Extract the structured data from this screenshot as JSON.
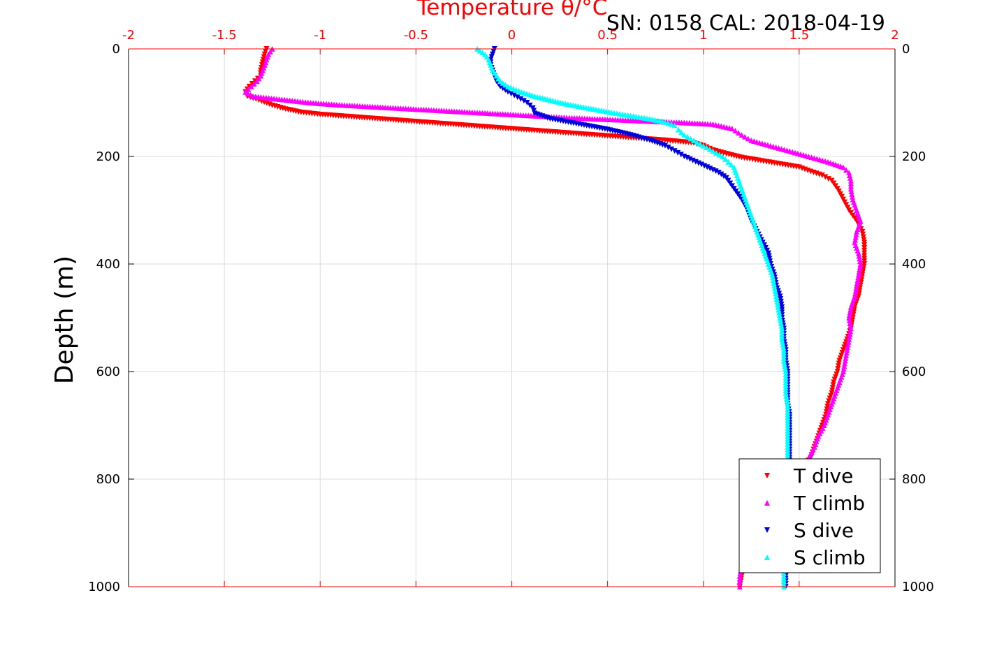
{
  "chart_data": {
    "type": "scatter",
    "title": "Temperature θ/°C",
    "annotation": "SN: 0158  CAL: 2018-04-19",
    "xlabel": "Temperature θ/°C",
    "ylabel": "Depth (m)",
    "xlim": [
      -2,
      2
    ],
    "ylim": [
      0,
      1000
    ],
    "y_inverted": true,
    "grid": true,
    "legend_position": "bottom-right",
    "xticks": [
      "-2",
      "-1.5",
      "-1",
      "-0.5",
      "0",
      "0.5",
      "1",
      "1.5",
      "2"
    ],
    "yticks": [
      "0",
      "200",
      "400",
      "600",
      "800",
      "1000"
    ],
    "colors": {
      "axes_x": "#ff0000",
      "axes_y": "#000000",
      "grid": "#dcdcdc"
    },
    "series": [
      {
        "name": "T dive",
        "color": "#ff0000",
        "marker": "triangle-down",
        "points": [
          [
            -1.28,
            0
          ],
          [
            -1.29,
            10
          ],
          [
            -1.3,
            25
          ],
          [
            -1.31,
            40
          ],
          [
            -1.31,
            50
          ],
          [
            -1.34,
            60
          ],
          [
            -1.37,
            70
          ],
          [
            -1.39,
            80
          ],
          [
            -1.38,
            88
          ],
          [
            -1.32,
            95
          ],
          [
            -1.25,
            105
          ],
          [
            -1.18,
            112
          ],
          [
            -1.1,
            118
          ],
          [
            -1.0,
            122
          ],
          [
            -0.85,
            126
          ],
          [
            -0.7,
            130
          ],
          [
            -0.55,
            134
          ],
          [
            -0.4,
            138
          ],
          [
            -0.25,
            142
          ],
          [
            -0.1,
            146
          ],
          [
            0.05,
            150
          ],
          [
            0.2,
            154
          ],
          [
            0.35,
            158
          ],
          [
            0.5,
            162
          ],
          [
            0.65,
            166
          ],
          [
            0.8,
            170
          ],
          [
            0.95,
            175
          ],
          [
            1.0,
            180
          ],
          [
            1.05,
            188
          ],
          [
            1.12,
            195
          ],
          [
            1.2,
            202
          ],
          [
            1.3,
            208
          ],
          [
            1.4,
            214
          ],
          [
            1.5,
            220
          ],
          [
            1.56,
            228
          ],
          [
            1.62,
            235
          ],
          [
            1.67,
            245
          ],
          [
            1.7,
            260
          ],
          [
            1.73,
            280
          ],
          [
            1.76,
            300
          ],
          [
            1.8,
            320
          ],
          [
            1.83,
            340
          ],
          [
            1.84,
            360
          ],
          [
            1.84,
            380
          ],
          [
            1.84,
            400
          ],
          [
            1.83,
            420
          ],
          [
            1.82,
            440
          ],
          [
            1.81,
            460
          ],
          [
            1.79,
            480
          ],
          [
            1.78,
            500
          ],
          [
            1.77,
            520
          ],
          [
            1.75,
            540
          ],
          [
            1.73,
            560
          ],
          [
            1.71,
            580
          ],
          [
            1.7,
            600
          ],
          [
            1.68,
            620
          ],
          [
            1.67,
            640
          ],
          [
            1.65,
            660
          ],
          [
            1.64,
            680
          ],
          [
            1.62,
            700
          ],
          [
            1.6,
            720
          ],
          [
            1.58,
            740
          ],
          [
            1.56,
            760
          ],
          [
            1.52,
            780
          ],
          [
            1.49,
            800
          ],
          [
            1.43,
            820
          ],
          [
            1.37,
            840
          ],
          [
            1.32,
            860
          ],
          [
            1.28,
            880
          ],
          [
            1.25,
            900
          ],
          [
            1.23,
            920
          ],
          [
            1.22,
            940
          ],
          [
            1.21,
            960
          ],
          [
            1.2,
            980
          ],
          [
            1.19,
            1000
          ]
        ]
      },
      {
        "name": "T climb",
        "color": "#ff00ff",
        "marker": "triangle-up",
        "points": [
          [
            -1.25,
            0
          ],
          [
            -1.27,
            10
          ],
          [
            -1.28,
            20
          ],
          [
            -1.29,
            30
          ],
          [
            -1.3,
            40
          ],
          [
            -1.31,
            50
          ],
          [
            -1.33,
            60
          ],
          [
            -1.36,
            70
          ],
          [
            -1.39,
            80
          ],
          [
            -1.35,
            88
          ],
          [
            -1.2,
            94
          ],
          [
            -1.05,
            100
          ],
          [
            -0.9,
            104
          ],
          [
            -0.7,
            108
          ],
          [
            -0.5,
            112
          ],
          [
            -0.3,
            116
          ],
          [
            -0.1,
            120
          ],
          [
            0.1,
            124
          ],
          [
            0.3,
            128
          ],
          [
            0.5,
            131
          ],
          [
            0.7,
            134
          ],
          [
            0.9,
            137
          ],
          [
            1.05,
            140
          ],
          [
            1.15,
            148
          ],
          [
            1.2,
            160
          ],
          [
            1.25,
            170
          ],
          [
            1.35,
            180
          ],
          [
            1.45,
            190
          ],
          [
            1.55,
            200
          ],
          [
            1.65,
            210
          ],
          [
            1.73,
            220
          ],
          [
            1.76,
            230
          ],
          [
            1.77,
            245
          ],
          [
            1.77,
            260
          ],
          [
            1.78,
            280
          ],
          [
            1.8,
            300
          ],
          [
            1.82,
            320
          ],
          [
            1.8,
            340
          ],
          [
            1.79,
            360
          ],
          [
            1.81,
            380
          ],
          [
            1.82,
            400
          ],
          [
            1.81,
            420
          ],
          [
            1.8,
            440
          ],
          [
            1.79,
            460
          ],
          [
            1.77,
            480
          ],
          [
            1.76,
            500
          ],
          [
            1.77,
            520
          ],
          [
            1.76,
            540
          ],
          [
            1.75,
            560
          ],
          [
            1.74,
            580
          ],
          [
            1.73,
            600
          ],
          [
            1.71,
            620
          ],
          [
            1.69,
            640
          ],
          [
            1.67,
            660
          ],
          [
            1.65,
            680
          ],
          [
            1.63,
            700
          ],
          [
            1.6,
            720
          ],
          [
            1.58,
            740
          ],
          [
            1.55,
            760
          ],
          [
            1.5,
            780
          ],
          [
            1.45,
            800
          ],
          [
            1.4,
            820
          ],
          [
            1.35,
            840
          ],
          [
            1.3,
            860
          ],
          [
            1.27,
            880
          ],
          [
            1.24,
            900
          ],
          [
            1.22,
            920
          ],
          [
            1.21,
            940
          ],
          [
            1.2,
            960
          ],
          [
            1.19,
            980
          ],
          [
            1.19,
            1000
          ]
        ]
      },
      {
        "name": "S dive",
        "color": "#0000dd",
        "marker": "triangle-down",
        "points": [
          [
            -0.09,
            0
          ],
          [
            -0.1,
            10
          ],
          [
            -0.11,
            20
          ],
          [
            -0.11,
            30
          ],
          [
            -0.1,
            40
          ],
          [
            -0.09,
            50
          ],
          [
            -0.08,
            60
          ],
          [
            -0.06,
            70
          ],
          [
            -0.02,
            80
          ],
          [
            0.03,
            90
          ],
          [
            0.08,
            100
          ],
          [
            0.11,
            110
          ],
          [
            0.12,
            120
          ],
          [
            0.2,
            130
          ],
          [
            0.35,
            140
          ],
          [
            0.5,
            150
          ],
          [
            0.62,
            160
          ],
          [
            0.72,
            170
          ],
          [
            0.8,
            180
          ],
          [
            0.85,
            190
          ],
          [
            0.9,
            200
          ],
          [
            0.96,
            210
          ],
          [
            1.02,
            220
          ],
          [
            1.08,
            230
          ],
          [
            1.12,
            240
          ],
          [
            1.16,
            260
          ],
          [
            1.2,
            280
          ],
          [
            1.23,
            300
          ],
          [
            1.25,
            320
          ],
          [
            1.28,
            340
          ],
          [
            1.31,
            360
          ],
          [
            1.34,
            380
          ],
          [
            1.35,
            400
          ],
          [
            1.37,
            420
          ],
          [
            1.38,
            440
          ],
          [
            1.4,
            460
          ],
          [
            1.41,
            480
          ],
          [
            1.41,
            500
          ],
          [
            1.42,
            520
          ],
          [
            1.42,
            540
          ],
          [
            1.43,
            560
          ],
          [
            1.43,
            580
          ],
          [
            1.44,
            600
          ],
          [
            1.44,
            620
          ],
          [
            1.44,
            640
          ],
          [
            1.44,
            660
          ],
          [
            1.45,
            680
          ],
          [
            1.45,
            700
          ],
          [
            1.45,
            720
          ],
          [
            1.45,
            740
          ],
          [
            1.45,
            760
          ],
          [
            1.45,
            780
          ],
          [
            1.45,
            800
          ],
          [
            1.44,
            820
          ],
          [
            1.44,
            840
          ],
          [
            1.44,
            860
          ],
          [
            1.44,
            880
          ],
          [
            1.44,
            900
          ],
          [
            1.43,
            920
          ],
          [
            1.43,
            940
          ],
          [
            1.43,
            960
          ],
          [
            1.43,
            980
          ],
          [
            1.43,
            1000
          ]
        ]
      },
      {
        "name": "S climb",
        "color": "#00ffff",
        "marker": "triangle-up",
        "points": [
          [
            -0.18,
            0
          ],
          [
            -0.14,
            10
          ],
          [
            -0.12,
            20
          ],
          [
            -0.11,
            30
          ],
          [
            -0.1,
            40
          ],
          [
            -0.08,
            50
          ],
          [
            -0.06,
            60
          ],
          [
            -0.02,
            70
          ],
          [
            0.05,
            80
          ],
          [
            0.12,
            88
          ],
          [
            0.2,
            95
          ],
          [
            0.28,
            102
          ],
          [
            0.4,
            110
          ],
          [
            0.52,
            118
          ],
          [
            0.62,
            124
          ],
          [
            0.72,
            130
          ],
          [
            0.8,
            136
          ],
          [
            0.85,
            142
          ],
          [
            0.87,
            150
          ],
          [
            0.9,
            160
          ],
          [
            0.95,
            170
          ],
          [
            1.0,
            180
          ],
          [
            1.05,
            190
          ],
          [
            1.1,
            200
          ],
          [
            1.13,
            210
          ],
          [
            1.16,
            220
          ],
          [
            1.18,
            240
          ],
          [
            1.2,
            260
          ],
          [
            1.22,
            280
          ],
          [
            1.24,
            300
          ],
          [
            1.26,
            320
          ],
          [
            1.28,
            340
          ],
          [
            1.3,
            360
          ],
          [
            1.32,
            380
          ],
          [
            1.34,
            400
          ],
          [
            1.36,
            420
          ],
          [
            1.37,
            440
          ],
          [
            1.38,
            460
          ],
          [
            1.39,
            480
          ],
          [
            1.4,
            500
          ],
          [
            1.41,
            520
          ],
          [
            1.41,
            540
          ],
          [
            1.42,
            560
          ],
          [
            1.42,
            580
          ],
          [
            1.43,
            600
          ],
          [
            1.43,
            620
          ],
          [
            1.43,
            640
          ],
          [
            1.44,
            660
          ],
          [
            1.44,
            680
          ],
          [
            1.44,
            700
          ],
          [
            1.44,
            720
          ],
          [
            1.44,
            740
          ],
          [
            1.44,
            760
          ],
          [
            1.44,
            780
          ],
          [
            1.44,
            800
          ],
          [
            1.43,
            820
          ],
          [
            1.43,
            840
          ],
          [
            1.43,
            860
          ],
          [
            1.43,
            880
          ],
          [
            1.43,
            900
          ],
          [
            1.43,
            920
          ],
          [
            1.43,
            940
          ],
          [
            1.42,
            960
          ],
          [
            1.42,
            980
          ],
          [
            1.42,
            1000
          ]
        ]
      }
    ]
  }
}
